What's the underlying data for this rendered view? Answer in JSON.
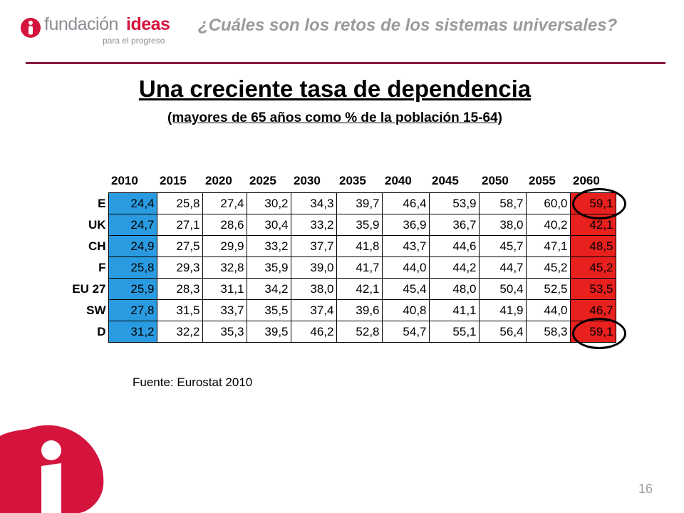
{
  "header": {
    "logo_word1": "fundación",
    "logo_word2": "ideas",
    "logo_tagline": "para el progreso",
    "question": "¿Cuáles son los retos de los sistemas universales?"
  },
  "title": "Una creciente tasa de dependencia",
  "subtitle": "(mayores de 65 años como % de la población 15-64)",
  "table": {
    "years": [
      "2010",
      "2015",
      "2020",
      "2025",
      "2030",
      "2035",
      "2040",
      "2045",
      "2050",
      "2055",
      "2060"
    ],
    "rows": [
      {
        "label": "E",
        "values": [
          "24,4",
          "25,8",
          "27,4",
          "30,2",
          "34,3",
          "39,7",
          "46,4",
          "53,9",
          "58,7",
          "60,0",
          "59,1"
        ]
      },
      {
        "label": "UK",
        "values": [
          "24,7",
          "27,1",
          "28,6",
          "30,4",
          "33,2",
          "35,9",
          "36,9",
          "36,7",
          "38,0",
          "40,2",
          "42,1"
        ]
      },
      {
        "label": "CH",
        "values": [
          "24,9",
          "27,5",
          "29,9",
          "33,2",
          "37,7",
          "41,8",
          "43,7",
          "44,6",
          "45,7",
          "47,1",
          "48,5"
        ]
      },
      {
        "label": "F",
        "values": [
          "25,8",
          "29,3",
          "32,8",
          "35,9",
          "39,0",
          "41,7",
          "44,0",
          "44,2",
          "44,7",
          "45,2",
          "45,2"
        ]
      },
      {
        "label": "EU 27",
        "values": [
          "25,9",
          "28,3",
          "31,1",
          "34,2",
          "38,0",
          "42,1",
          "45,4",
          "48,0",
          "50,4",
          "52,5",
          "53,5"
        ]
      },
      {
        "label": "SW",
        "values": [
          "27,8",
          "31,5",
          "33,7",
          "35,5",
          "37,4",
          "39,6",
          "40,8",
          "41,1",
          "41,9",
          "44,0",
          "46,7"
        ]
      },
      {
        "label": "D",
        "values": [
          "31,2",
          "32,2",
          "35,3",
          "39,5",
          "46,2",
          "52,8",
          "54,7",
          "55,1",
          "56,4",
          "58,3",
          "59,1"
        ]
      }
    ],
    "colors": {
      "first_col": "#2a9be0",
      "last_col": "#e8201e"
    }
  },
  "source": "Fuente: Eurostat 2010",
  "page_number": "16",
  "colors": {
    "brand": "#d4143c",
    "rule": "#8b1a3c"
  }
}
